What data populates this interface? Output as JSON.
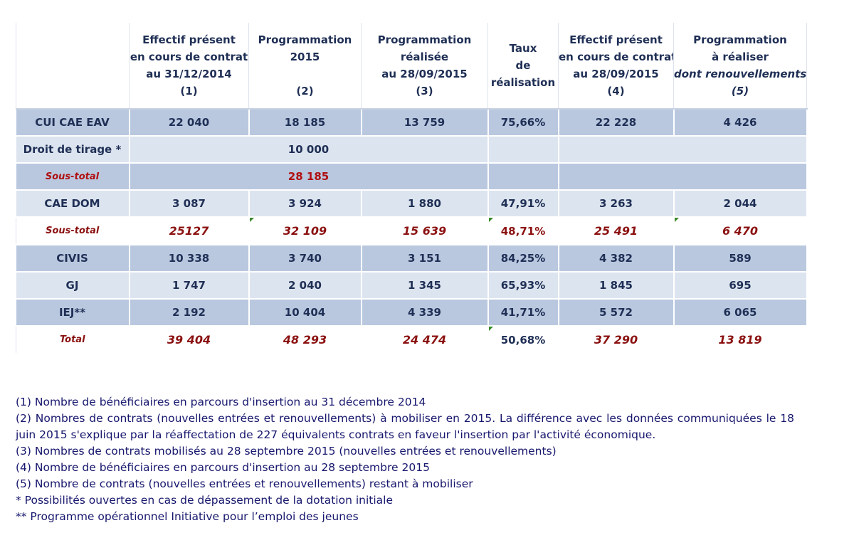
{
  "table": {
    "headers": [
      "",
      "Effectif présent\nen cours de contrat\nau 31/12/2014\n(1)",
      "Programmation\n2015\n\n(2)",
      "Programmation\nréalisée\nau 28/09/2015\n(3)",
      "Taux\nde\nréalisation",
      "Effectif présent\nen cours de contrat\nau 28/09/2015\n(4)",
      "Programmation\nà réaliser\ndont renouvellements\n(5)"
    ],
    "rows": [
      {
        "label": "CUI CAE EAV",
        "cells": [
          "22 040",
          "18 185",
          "13 759",
          "75,66%",
          "22 228",
          "4 426"
        ]
      },
      {
        "label": "Droit de tirage *",
        "cells": [
          "",
          "10 000",
          "",
          "",
          "",
          ""
        ]
      },
      {
        "label": "Sous-total",
        "cells": [
          "",
          "28 185",
          "",
          "",
          "",
          ""
        ]
      },
      {
        "label": "CAE DOM",
        "cells": [
          "3 087",
          "3 924",
          "1 880",
          "47,91%",
          "3 263",
          "2 044"
        ]
      },
      {
        "label": "Sous-total",
        "cells": [
          "25127",
          "32 109",
          "15 639",
          "48,71%",
          "25 491",
          "6 470"
        ]
      },
      {
        "label": "CIVIS",
        "cells": [
          "10 338",
          "3 740",
          "3 151",
          "84,25%",
          "4 382",
          "589"
        ]
      },
      {
        "label": "GJ",
        "cells": [
          "1 747",
          "2 040",
          "1 345",
          "65,93%",
          "1 845",
          "695"
        ]
      },
      {
        "label": "IEJ**",
        "cells": [
          "2 192",
          "10 404",
          "4 339",
          "41,71%",
          "5 572",
          "6 065"
        ]
      },
      {
        "label": "Total",
        "cells": [
          "39 404",
          "48 293",
          "24 474",
          "50,68%",
          "37 290",
          "13 819"
        ]
      }
    ]
  },
  "notes": [
    "(1) Nombre de bénéficiaires en parcours d'insertion au 31 décembre 2014",
    "(2) Nombres de contrats (nouvelles entrées et renouvellements) à mobiliser en 2015. La différence avec les données communiquées le 18 juin 2015 s'explique par la réaffectation de 227 équivalents contrats en faveur l'insertion par l'activité économique.",
    "(3) Nombres de contrats mobilisés au 28 septembre 2015 (nouvelles entrées et renouvellements)",
    "(4) Nombre de bénéficiaires en parcours d'insertion au 28 septembre 2015",
    "(5) Nombre de contrats (nouvelles entrées et renouvellements) restant à mobiliser",
    "* Possibilités ouvertes en cas de dépassement de la dotation initiale",
    "** Programme opérationnel Initiative pour l’emploi des jeunes"
  ],
  "colors": {
    "header_text": "#1f2f55",
    "row_dark": "#b9c8df",
    "row_light": "#dce4ef",
    "subtotal_red": "#b01010",
    "notes_text": "#17176e",
    "marker_green": "#3a8a2a"
  }
}
